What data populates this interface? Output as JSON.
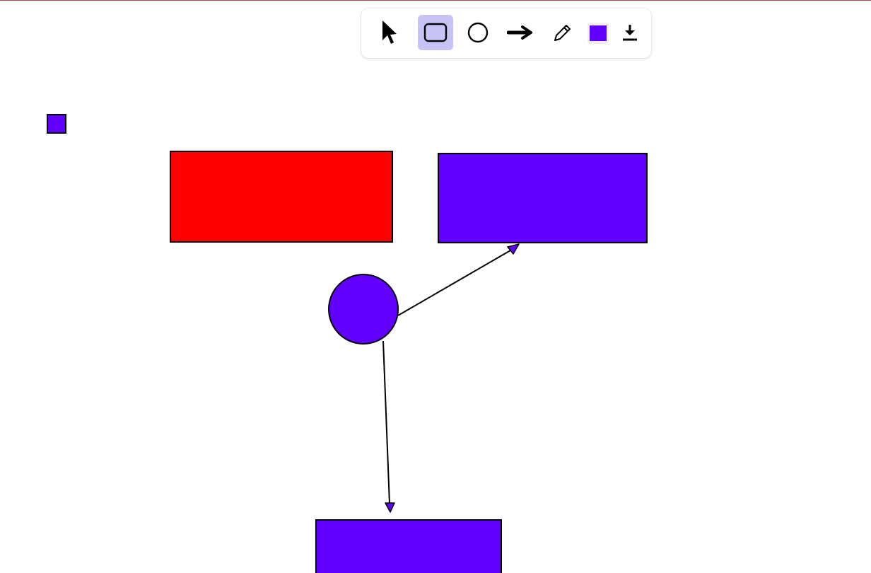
{
  "toolbar": {
    "tools": [
      {
        "name": "select",
        "icon": "pointer-icon",
        "selected": false
      },
      {
        "name": "rectangle",
        "icon": "rectangle-icon",
        "selected": true
      },
      {
        "name": "ellipse",
        "icon": "circle-icon",
        "selected": false
      },
      {
        "name": "arrow",
        "icon": "arrow-right-icon",
        "selected": false
      },
      {
        "name": "pencil",
        "icon": "pencil-icon",
        "selected": false
      }
    ],
    "current_color": "#6200ff",
    "download_icon": "download-icon"
  },
  "canvas": {
    "background": "#ffffff",
    "stroke_color": "#000000",
    "shapes": [
      {
        "kind": "rectangle",
        "fill": "#6200ff",
        "label": "small-square"
      },
      {
        "kind": "rectangle",
        "fill": "#ff0000",
        "label": "red-rectangle"
      },
      {
        "kind": "rectangle",
        "fill": "#6200ff",
        "label": "purple-rectangle-top"
      },
      {
        "kind": "ellipse",
        "fill": "#6200ff",
        "label": "purple-circle"
      },
      {
        "kind": "rectangle",
        "fill": "#6200ff",
        "label": "purple-rectangle-bottom"
      },
      {
        "kind": "arrow",
        "fill": "#6200ff",
        "label": "arrow-circle-to-top"
      },
      {
        "kind": "arrow",
        "fill": "#6200ff",
        "label": "arrow-circle-to-bottom"
      }
    ]
  }
}
